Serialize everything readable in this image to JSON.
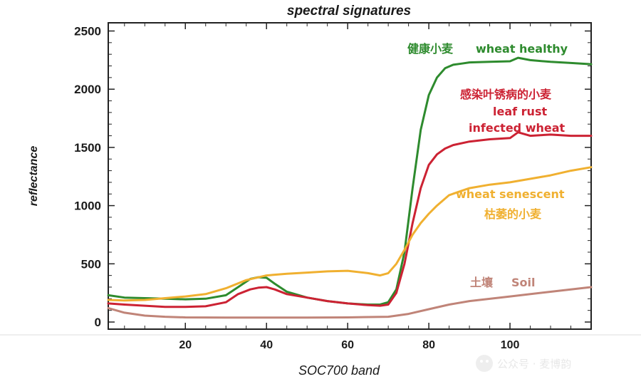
{
  "chart_data": {
    "type": "line",
    "title": "spectral signatures",
    "xlabel": "SOC700 band",
    "ylabel": "reflectance",
    "xlim": [
      1,
      120
    ],
    "ylim": [
      0,
      2600
    ],
    "xticks": [
      20,
      40,
      60,
      80,
      100
    ],
    "yticks": [
      0,
      500,
      1000,
      1500,
      2000,
      2500
    ],
    "grid": false,
    "legend": "inline labels",
    "series": [
      {
        "name": "wheat healthy",
        "name_zh": "健康小麦",
        "color": "#2e8b2e",
        "x": [
          1,
          5,
          10,
          15,
          20,
          25,
          30,
          33,
          36,
          38,
          40,
          42,
          45,
          50,
          55,
          60,
          65,
          68,
          70,
          72,
          74,
          76,
          78,
          80,
          82,
          84,
          86,
          88,
          90,
          95,
          100,
          102,
          105,
          110,
          115,
          120
        ],
        "y": [
          230,
          210,
          205,
          200,
          195,
          200,
          230,
          300,
          370,
          385,
          380,
          330,
          260,
          210,
          180,
          160,
          150,
          150,
          170,
          280,
          600,
          1150,
          1650,
          1950,
          2100,
          2180,
          2210,
          2220,
          2230,
          2235,
          2240,
          2270,
          2250,
          2235,
          2225,
          2215
        ]
      },
      {
        "name": "leaf rust infected wheat",
        "name_zh": "感染叶锈病的小麦",
        "color": "#cc2233",
        "x": [
          1,
          5,
          10,
          15,
          20,
          25,
          30,
          33,
          36,
          38,
          40,
          42,
          45,
          50,
          55,
          60,
          65,
          68,
          70,
          72,
          74,
          76,
          78,
          80,
          82,
          84,
          86,
          90,
          95,
          100,
          102,
          105,
          110,
          115,
          120
        ],
        "y": [
          160,
          150,
          140,
          130,
          130,
          135,
          170,
          240,
          280,
          295,
          300,
          280,
          240,
          210,
          180,
          160,
          145,
          140,
          150,
          250,
          500,
          850,
          1150,
          1350,
          1440,
          1490,
          1520,
          1550,
          1570,
          1580,
          1630,
          1600,
          1610,
          1600,
          1600
        ]
      },
      {
        "name": "wheat senescent",
        "name_zh": "枯萎的小麦",
        "color": "#f0b030",
        "x": [
          1,
          5,
          10,
          15,
          20,
          25,
          30,
          35,
          40,
          45,
          50,
          55,
          60,
          65,
          68,
          70,
          72,
          74,
          76,
          78,
          80,
          82,
          85,
          90,
          95,
          100,
          105,
          110,
          115,
          120
        ],
        "y": [
          190,
          185,
          190,
          205,
          220,
          240,
          290,
          360,
          400,
          415,
          425,
          435,
          440,
          420,
          400,
          420,
          500,
          620,
          750,
          850,
          930,
          1000,
          1090,
          1150,
          1180,
          1200,
          1230,
          1260,
          1300,
          1330
        ]
      },
      {
        "name": "Soil",
        "name_zh": "土壤",
        "color": "#c08478",
        "x": [
          1,
          5,
          10,
          15,
          20,
          30,
          40,
          50,
          60,
          70,
          75,
          80,
          85,
          90,
          100,
          110,
          120
        ],
        "y": [
          120,
          80,
          55,
          45,
          40,
          38,
          38,
          38,
          40,
          45,
          70,
          110,
          150,
          180,
          220,
          260,
          300
        ]
      }
    ],
    "annotations": [
      {
        "text": "健康小麦",
        "color": "#2e8b2e"
      },
      {
        "text": "wheat healthy",
        "color": "#2e8b2e"
      },
      {
        "text": "感染叶锈病的小麦",
        "color": "#cc2233"
      },
      {
        "text": "leaf rust",
        "color": "#cc2233"
      },
      {
        "text": "infected wheat",
        "color": "#cc2233"
      },
      {
        "text": "wheat senescent",
        "color": "#f0b030"
      },
      {
        "text": "枯萎的小麦",
        "color": "#f0b030"
      },
      {
        "text": "土壤",
        "color": "#c08478"
      },
      {
        "text": "Soil",
        "color": "#c08478"
      }
    ]
  },
  "watermark": "公众号 · 麦博韵"
}
